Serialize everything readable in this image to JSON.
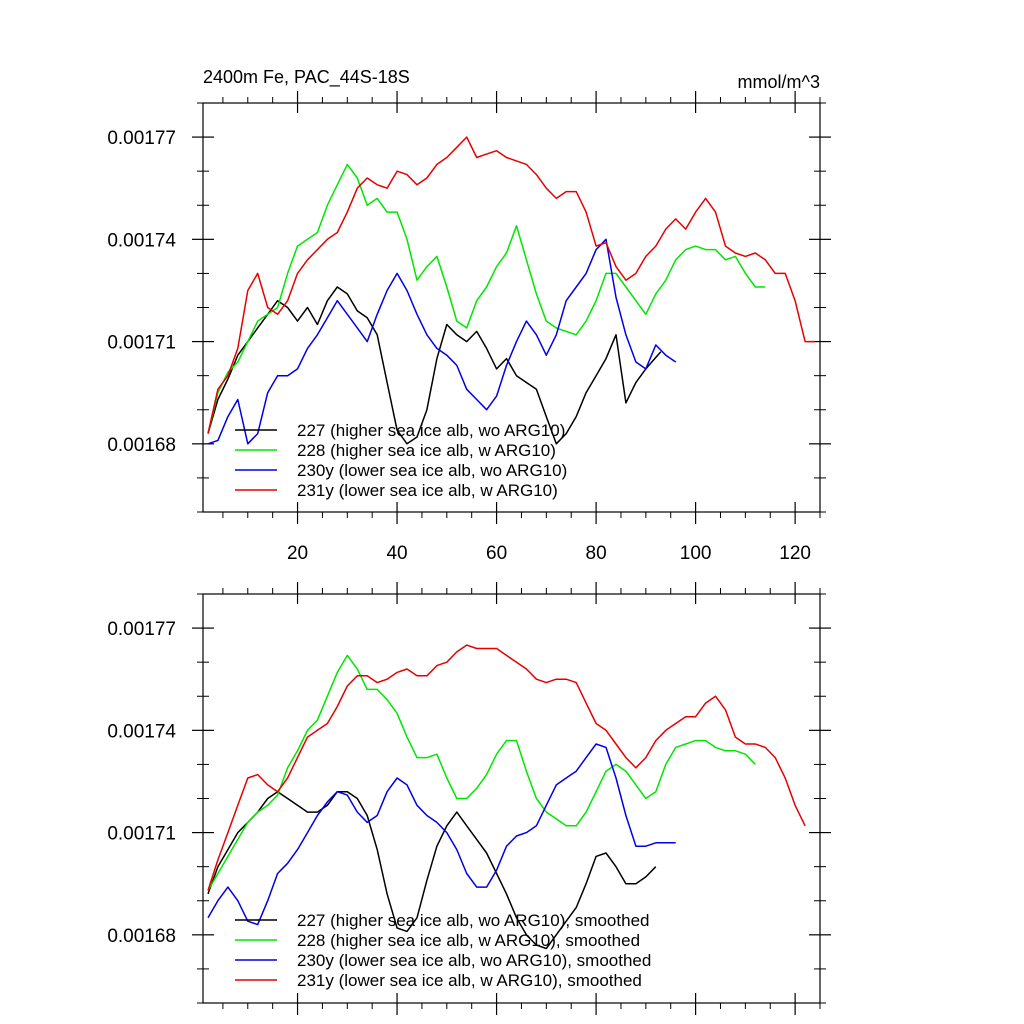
{
  "chart_data": [
    {
      "type": "line",
      "title": "2400m Fe, PAC_44S-18S",
      "units_label": "mmol/m^3",
      "xlim": [
        1,
        125
      ],
      "ylim": [
        0.00166,
        0.00178
      ],
      "xticks": [
        20,
        40,
        60,
        80,
        100,
        120
      ],
      "xtick_labels": [
        "20",
        "40",
        "60",
        "80",
        "100",
        "120"
      ],
      "yticks": [
        0.00168,
        0.00171,
        0.00174,
        0.00177
      ],
      "ytick_labels": [
        "0.00168",
        "0.00171",
        "0.00174",
        "0.00177"
      ],
      "series": [
        {
          "name": "227 (higher sea ice alb, wo ARG10)",
          "color": "#000000",
          "x": [
            2,
            4,
            6,
            8,
            10,
            12,
            14,
            16,
            18,
            20,
            22,
            24,
            26,
            28,
            30,
            32,
            34,
            36,
            38,
            40,
            42,
            44,
            46,
            48,
            50,
            52,
            54,
            56,
            58,
            60,
            62,
            64,
            66,
            68,
            70,
            72,
            74,
            76,
            78,
            80,
            82,
            84,
            86,
            88,
            90,
            93
          ],
          "y": [
            0.001683,
            0.001693,
            0.001699,
            0.001706,
            0.00171,
            0.001714,
            0.001718,
            0.001722,
            0.00172,
            0.001716,
            0.00172,
            0.001715,
            0.001722,
            0.001726,
            0.001724,
            0.001719,
            0.001717,
            0.001712,
            0.001698,
            0.001684,
            0.00168,
            0.001682,
            0.00169,
            0.001705,
            0.001715,
            0.001712,
            0.00171,
            0.001713,
            0.001708,
            0.001702,
            0.001705,
            0.0017,
            0.001698,
            0.001696,
            0.001688,
            0.00168,
            0.001683,
            0.001688,
            0.001695,
            0.0017,
            0.001705,
            0.001712,
            0.001692,
            0.001698,
            0.001702,
            0.001707
          ]
        },
        {
          "name": "228 (higher sea ice alb, w ARG10)",
          "color": "#00e600",
          "x": [
            2,
            4,
            6,
            8,
            10,
            12,
            14,
            16,
            18,
            20,
            22,
            24,
            26,
            28,
            30,
            32,
            34,
            36,
            38,
            40,
            42,
            44,
            46,
            48,
            50,
            52,
            54,
            56,
            58,
            60,
            62,
            64,
            66,
            68,
            70,
            72,
            74,
            76,
            78,
            80,
            82,
            84,
            86,
            88,
            90,
            92,
            94,
            96,
            98,
            100,
            102,
            104,
            106,
            108,
            110,
            112,
            114
          ],
          "y": [
            0.001683,
            0.001695,
            0.001701,
            0.001704,
            0.00171,
            0.001716,
            0.001718,
            0.00172,
            0.00173,
            0.001738,
            0.00174,
            0.001742,
            0.00175,
            0.001756,
            0.001762,
            0.001758,
            0.00175,
            0.001752,
            0.001748,
            0.001748,
            0.00174,
            0.001728,
            0.001732,
            0.001735,
            0.001726,
            0.001716,
            0.001714,
            0.001722,
            0.001726,
            0.001732,
            0.001736,
            0.001744,
            0.001734,
            0.001724,
            0.001716,
            0.001714,
            0.001713,
            0.001712,
            0.001716,
            0.001722,
            0.00173,
            0.00173,
            0.001726,
            0.001722,
            0.001718,
            0.001724,
            0.001728,
            0.001734,
            0.001737,
            0.001738,
            0.001737,
            0.001737,
            0.001734,
            0.001735,
            0.00173,
            0.001726,
            0.001726
          ]
        },
        {
          "name": "230y (lower sea ice alb, wo ARG10)",
          "color": "#0000e6",
          "x": [
            2,
            4,
            6,
            8,
            10,
            12,
            14,
            16,
            18,
            20,
            22,
            24,
            26,
            28,
            30,
            32,
            34,
            36,
            38,
            40,
            42,
            44,
            46,
            48,
            50,
            52,
            54,
            56,
            58,
            60,
            62,
            64,
            66,
            68,
            70,
            72,
            74,
            76,
            78,
            80,
            82,
            84,
            86,
            88,
            90,
            92,
            94,
            96
          ],
          "y": [
            0.00168,
            0.001681,
            0.001688,
            0.001693,
            0.00168,
            0.001683,
            0.001695,
            0.0017,
            0.0017,
            0.001702,
            0.001708,
            0.001712,
            0.001717,
            0.001722,
            0.001718,
            0.001714,
            0.00171,
            0.001718,
            0.001725,
            0.00173,
            0.001725,
            0.001718,
            0.001712,
            0.001708,
            0.001706,
            0.001703,
            0.001696,
            0.001693,
            0.00169,
            0.001694,
            0.001703,
            0.00171,
            0.001716,
            0.001712,
            0.001706,
            0.001712,
            0.001722,
            0.001726,
            0.00173,
            0.001737,
            0.00174,
            0.001723,
            0.001712,
            0.001704,
            0.001702,
            0.001709,
            0.001706,
            0.001704
          ]
        },
        {
          "name": "231y (lower sea ice alb, w ARG10)",
          "color": "#e60000",
          "x": [
            2,
            4,
            6,
            8,
            10,
            12,
            14,
            16,
            18,
            20,
            22,
            24,
            26,
            28,
            30,
            32,
            34,
            36,
            38,
            40,
            42,
            44,
            46,
            48,
            50,
            52,
            54,
            56,
            58,
            60,
            62,
            64,
            66,
            68,
            70,
            72,
            74,
            76,
            78,
            80,
            82,
            84,
            86,
            88,
            90,
            92,
            94,
            96,
            98,
            100,
            102,
            104,
            106,
            108,
            110,
            112,
            114,
            116,
            118,
            120,
            122,
            124
          ],
          "y": [
            0.001683,
            0.001696,
            0.0017,
            0.001708,
            0.001725,
            0.00173,
            0.00172,
            0.001718,
            0.001722,
            0.00173,
            0.001734,
            0.001737,
            0.00174,
            0.001742,
            0.001748,
            0.001755,
            0.001758,
            0.001756,
            0.001755,
            0.00176,
            0.001759,
            0.001756,
            0.001758,
            0.001762,
            0.001764,
            0.001767,
            0.00177,
            0.001764,
            0.001765,
            0.001766,
            0.001764,
            0.001763,
            0.001762,
            0.001759,
            0.001755,
            0.001752,
            0.001754,
            0.001754,
            0.001748,
            0.001738,
            0.001739,
            0.001732,
            0.001728,
            0.00173,
            0.001735,
            0.001738,
            0.001743,
            0.001746,
            0.001743,
            0.001748,
            0.001752,
            0.001748,
            0.001738,
            0.001736,
            0.001735,
            0.001736,
            0.001734,
            0.00173,
            0.00173,
            0.001722,
            0.00171,
            0.00171
          ]
        }
      ]
    },
    {
      "type": "line",
      "title": "",
      "xlim": [
        1,
        125
      ],
      "ylim": [
        0.00166,
        0.00178
      ],
      "yticks": [
        0.00168,
        0.00171,
        0.00174,
        0.00177
      ],
      "ytick_labels": [
        "0.00168",
        "0.00171",
        "0.00174",
        "0.00177"
      ],
      "xticks": [
        20,
        40,
        60,
        80,
        100,
        120
      ],
      "series": [
        {
          "name": "227 (higher sea ice alb, wo ARG10), smoothed",
          "color": "#000000",
          "x": [
            2,
            4,
            6,
            8,
            10,
            12,
            14,
            16,
            18,
            20,
            22,
            24,
            26,
            28,
            30,
            32,
            34,
            36,
            38,
            40,
            42,
            44,
            46,
            48,
            50,
            52,
            54,
            56,
            58,
            60,
            62,
            64,
            66,
            68,
            70,
            72,
            74,
            76,
            78,
            80,
            82,
            84,
            86,
            88,
            90,
            92
          ],
          "y": [
            0.001692,
            0.0017,
            0.001705,
            0.00171,
            0.001713,
            0.001716,
            0.00172,
            0.001722,
            0.00172,
            0.001718,
            0.001716,
            0.001716,
            0.001718,
            0.001722,
            0.001722,
            0.00172,
            0.001715,
            0.001705,
            0.001692,
            0.001682,
            0.001681,
            0.001685,
            0.001696,
            0.001706,
            0.001712,
            0.001716,
            0.001712,
            0.001708,
            0.001704,
            0.001698,
            0.001692,
            0.001685,
            0.00168,
            0.001677,
            0.001676,
            0.00168,
            0.001684,
            0.001688,
            0.001695,
            0.001703,
            0.001704,
            0.0017,
            0.001695,
            0.001695,
            0.001697,
            0.0017
          ]
        },
        {
          "name": "228 (higher sea ice alb, w ARG10), smoothed",
          "color": "#00e600",
          "x": [
            2,
            4,
            6,
            8,
            10,
            12,
            14,
            16,
            18,
            20,
            22,
            24,
            26,
            28,
            30,
            32,
            34,
            36,
            38,
            40,
            42,
            44,
            46,
            48,
            50,
            52,
            54,
            56,
            58,
            60,
            62,
            64,
            66,
            68,
            70,
            72,
            74,
            76,
            78,
            80,
            82,
            84,
            86,
            88,
            90,
            92,
            94,
            96,
            98,
            100,
            102,
            104,
            106,
            108,
            110,
            112
          ],
          "y": [
            0.001693,
            0.001698,
            0.001703,
            0.001708,
            0.001713,
            0.001716,
            0.001718,
            0.001721,
            0.001729,
            0.001734,
            0.00174,
            0.001743,
            0.00175,
            0.001757,
            0.001762,
            0.001758,
            0.001752,
            0.001752,
            0.001749,
            0.001745,
            0.001738,
            0.001732,
            0.001732,
            0.001733,
            0.001726,
            0.00172,
            0.00172,
            0.001723,
            0.001727,
            0.001733,
            0.001737,
            0.001737,
            0.001728,
            0.00172,
            0.001716,
            0.001714,
            0.001712,
            0.001712,
            0.001716,
            0.001722,
            0.001728,
            0.00173,
            0.001728,
            0.001724,
            0.00172,
            0.001722,
            0.00173,
            0.001735,
            0.001736,
            0.001737,
            0.001737,
            0.001735,
            0.001734,
            0.001734,
            0.001733,
            0.00173
          ]
        },
        {
          "name": "230y (lower sea ice alb, wo ARG10), smoothed",
          "color": "#0000e6",
          "x": [
            2,
            4,
            6,
            8,
            10,
            12,
            14,
            16,
            18,
            20,
            22,
            24,
            26,
            28,
            30,
            32,
            34,
            36,
            38,
            40,
            42,
            44,
            46,
            48,
            50,
            52,
            54,
            56,
            58,
            60,
            62,
            64,
            66,
            68,
            70,
            72,
            74,
            76,
            78,
            80,
            82,
            84,
            86,
            88,
            90,
            92,
            94,
            96
          ],
          "y": [
            0.001685,
            0.00169,
            0.001694,
            0.00169,
            0.001684,
            0.001683,
            0.00169,
            0.001698,
            0.001701,
            0.001705,
            0.00171,
            0.001715,
            0.001719,
            0.001722,
            0.001721,
            0.001716,
            0.001713,
            0.001715,
            0.001722,
            0.001726,
            0.001724,
            0.001718,
            0.001715,
            0.001713,
            0.00171,
            0.001705,
            0.001698,
            0.001694,
            0.001694,
            0.001699,
            0.001706,
            0.001709,
            0.00171,
            0.001712,
            0.001718,
            0.001724,
            0.001726,
            0.001728,
            0.001732,
            0.001736,
            0.001735,
            0.001726,
            0.001715,
            0.001706,
            0.001706,
            0.001707,
            0.001707,
            0.001707
          ]
        },
        {
          "name": "231y (lower sea ice alb, w ARG10), smoothed",
          "color": "#e60000",
          "x": [
            2,
            4,
            6,
            8,
            10,
            12,
            14,
            16,
            18,
            20,
            22,
            24,
            26,
            28,
            30,
            32,
            34,
            36,
            38,
            40,
            42,
            44,
            46,
            48,
            50,
            52,
            54,
            56,
            58,
            60,
            62,
            64,
            66,
            68,
            70,
            72,
            74,
            76,
            78,
            80,
            82,
            84,
            86,
            88,
            90,
            92,
            94,
            96,
            98,
            100,
            102,
            104,
            106,
            108,
            110,
            112,
            114,
            116,
            118,
            120,
            122
          ],
          "y": [
            0.001693,
            0.001702,
            0.00171,
            0.001718,
            0.001726,
            0.001727,
            0.001724,
            0.001722,
            0.001726,
            0.001732,
            0.001738,
            0.00174,
            0.001742,
            0.001747,
            0.001753,
            0.001756,
            0.001756,
            0.001754,
            0.001755,
            0.001757,
            0.001758,
            0.001756,
            0.001756,
            0.001759,
            0.00176,
            0.001763,
            0.001765,
            0.001764,
            0.001764,
            0.001764,
            0.001762,
            0.00176,
            0.001758,
            0.001755,
            0.001754,
            0.001755,
            0.001755,
            0.001754,
            0.001748,
            0.001742,
            0.00174,
            0.001736,
            0.001732,
            0.001729,
            0.001732,
            0.001737,
            0.00174,
            0.001742,
            0.001744,
            0.001744,
            0.001748,
            0.00175,
            0.001746,
            0.001738,
            0.001736,
            0.001736,
            0.001735,
            0.001732,
            0.001726,
            0.001718,
            0.001712
          ]
        }
      ]
    }
  ]
}
